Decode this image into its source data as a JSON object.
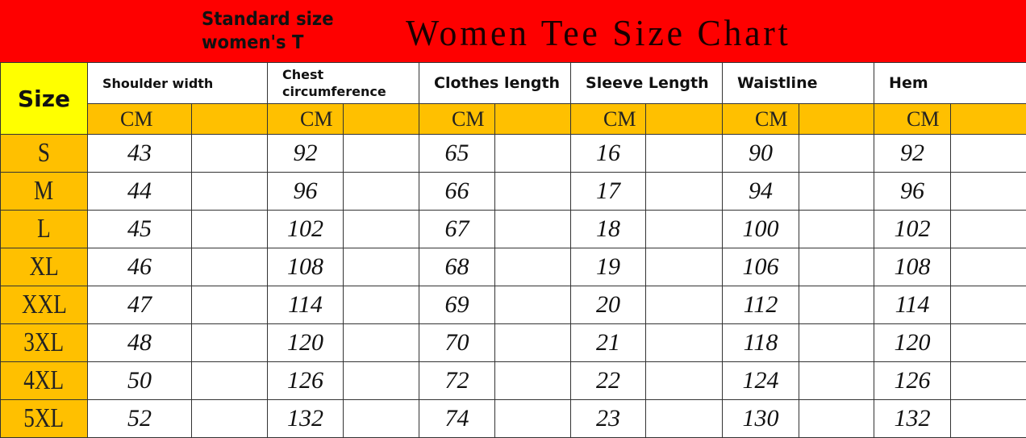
{
  "banner": {
    "subtitle_line1": "Standard size",
    "subtitle_line2": "women's T",
    "title": "Women Tee Size Chart"
  },
  "table": {
    "size_header": "Size",
    "unit": "CM",
    "columns": [
      "Shoulder width",
      "Chest circumference",
      "Clothes length",
      "Sleeve Length",
      "Waistline",
      "Hem"
    ],
    "rows": [
      {
        "size": "S",
        "values": [
          "43",
          "92",
          "65",
          "16",
          "90",
          "92"
        ]
      },
      {
        "size": "M",
        "values": [
          "44",
          "96",
          "66",
          "17",
          "94",
          "96"
        ]
      },
      {
        "size": "L",
        "values": [
          "45",
          "102",
          "67",
          "18",
          "100",
          "102"
        ]
      },
      {
        "size": "XL",
        "values": [
          "46",
          "108",
          "68",
          "19",
          "106",
          "108"
        ]
      },
      {
        "size": "XXL",
        "values": [
          "47",
          "114",
          "69",
          "20",
          "112",
          "114"
        ]
      },
      {
        "size": "3XL",
        "values": [
          "48",
          "120",
          "70",
          "21",
          "118",
          "120"
        ]
      },
      {
        "size": "4XL",
        "values": [
          "50",
          "126",
          "72",
          "22",
          "124",
          "126"
        ]
      },
      {
        "size": "5XL",
        "values": [
          "52",
          "132",
          "74",
          "23",
          "130",
          "132"
        ]
      }
    ]
  },
  "colors": {
    "banner": "#fe0000",
    "size_header": "#ffff00",
    "accent": "#ffc000"
  }
}
